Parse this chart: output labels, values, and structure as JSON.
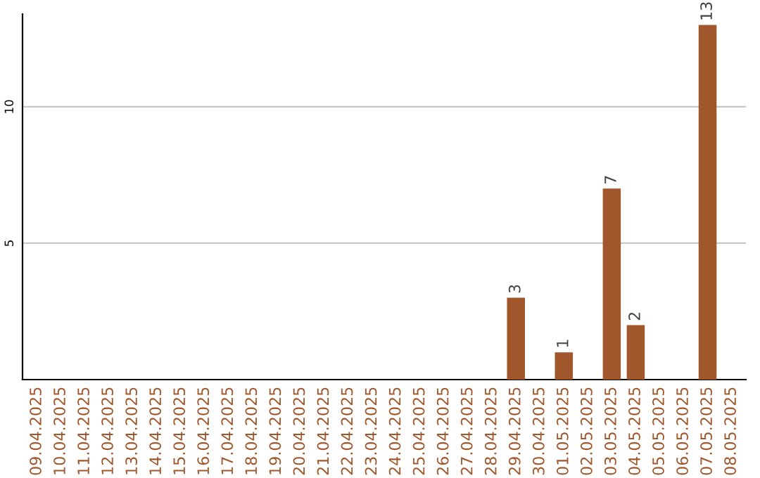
{
  "chart_data": {
    "type": "bar",
    "categories": [
      "09.04.2025",
      "10.04.2025",
      "11.04.2025",
      "12.04.2025",
      "13.04.2025",
      "14.04.2025",
      "15.04.2025",
      "16.04.2025",
      "17.04.2025",
      "18.04.2025",
      "19.04.2025",
      "20.04.2025",
      "21.04.2025",
      "22.04.2025",
      "23.04.2025",
      "24.04.2025",
      "25.04.2025",
      "26.04.2025",
      "27.04.2025",
      "28.04.2025",
      "29.04.2025",
      "30.04.2025",
      "01.05.2025",
      "02.05.2025",
      "03.05.2025",
      "04.05.2025",
      "05.05.2025",
      "06.05.2025",
      "07.05.2025",
      "08.05.2025"
    ],
    "values": [
      0,
      0,
      0,
      0,
      0,
      0,
      0,
      0,
      0,
      0,
      0,
      0,
      0,
      0,
      0,
      0,
      0,
      0,
      0,
      0,
      3,
      0,
      1,
      0,
      7,
      2,
      0,
      0,
      13,
      0
    ],
    "value_labels": [
      null,
      null,
      null,
      null,
      null,
      null,
      null,
      null,
      null,
      null,
      null,
      null,
      null,
      null,
      null,
      null,
      null,
      null,
      null,
      null,
      "3",
      null,
      "1",
      null,
      "7",
      "2",
      null,
      null,
      "13",
      null
    ],
    "color": "#a0572b",
    "ylim": [
      0,
      13.4
    ],
    "yticks": [
      5,
      10
    ],
    "grid": "y",
    "legend": false
  }
}
